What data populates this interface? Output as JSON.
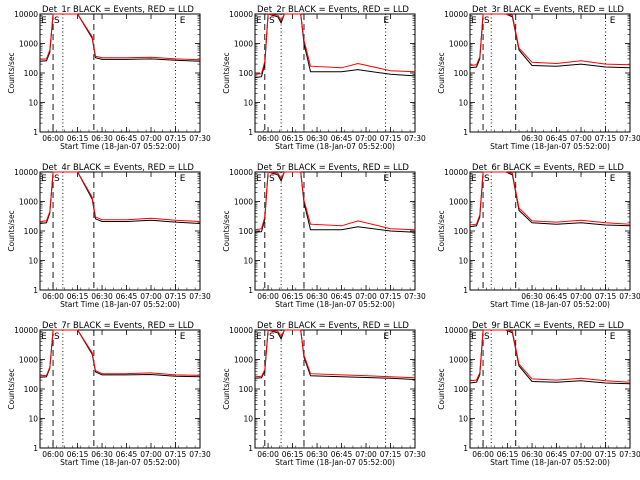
{
  "chart_data": [
    {
      "type": "line",
      "title": "Det_1r BLACK = Events, RED = LLD",
      "xlabel": "Start Time (18-Jan-07 05:52:00)",
      "ylabel": "Counts/sec",
      "log_y": true,
      "ylim": [
        1,
        10000
      ],
      "xlim": [
        "05:52",
        "07:30"
      ],
      "x_ticks": [
        "06:00",
        "06:15",
        "06:30",
        "06:45",
        "07:00",
        "07:15",
        "07:30"
      ],
      "y_ticks": [
        "1",
        "10",
        "100",
        "1000",
        "10000"
      ],
      "markers": [
        {
          "label": "E",
          "x": "05:52"
        },
        {
          "label": "S",
          "x": "06:00"
        },
        {
          "label": "E",
          "x": "07:17"
        }
      ],
      "dashed_lines": [
        "06:00",
        "06:25"
      ],
      "dotted_lines": [
        "06:06",
        "07:15"
      ],
      "series": [
        {
          "name": "Events",
          "color": "#000000",
          "x": [
            "05:52",
            "05:56",
            "05:58",
            "06:00",
            "06:15",
            "06:24",
            "06:26",
            "06:30",
            "06:45",
            "07:00",
            "07:15",
            "07:30"
          ],
          "values": [
            250,
            260,
            500,
            10000,
            10000,
            1500,
            330,
            290,
            290,
            300,
            270,
            250
          ]
        },
        {
          "name": "LLD",
          "color": "#ff0000",
          "x": [
            "05:52",
            "05:56",
            "05:58",
            "06:00",
            "06:15",
            "06:24",
            "06:26",
            "06:30",
            "06:45",
            "07:00",
            "07:15",
            "07:30"
          ],
          "values": [
            290,
            300,
            600,
            10000,
            10000,
            1700,
            370,
            330,
            330,
            340,
            300,
            280
          ]
        }
      ]
    },
    {
      "type": "line",
      "title": "Det_2r BLACK = Events, RED = LLD",
      "xlabel": "Start Time (18-Jan-07 05:52:00)",
      "ylabel": "Counts/sec",
      "log_y": true,
      "ylim": [
        1,
        10000
      ],
      "xlim": [
        "05:52",
        "07:30"
      ],
      "x_ticks": [
        "06:00",
        "06:15",
        "06:30",
        "06:45",
        "07:00",
        "07:15",
        "07:30"
      ],
      "y_ticks": [
        "1",
        "10",
        "100",
        "1000",
        "10000"
      ],
      "markers": [
        {
          "label": "E",
          "x": "05:52"
        },
        {
          "label": "S",
          "x": "06:00"
        },
        {
          "label": "E",
          "x": "07:10"
        }
      ],
      "dashed_lines": [
        "05:58",
        "06:22"
      ],
      "dotted_lines": [
        "06:08",
        "07:12"
      ],
      "series": [
        {
          "name": "Events",
          "color": "#000000",
          "x": [
            "05:52",
            "05:56",
            "05:58",
            "06:00",
            "06:06",
            "06:08",
            "06:10",
            "06:20",
            "06:22",
            "06:26",
            "06:45",
            "06:55",
            "07:15",
            "07:30"
          ],
          "values": [
            70,
            75,
            200,
            10000,
            8000,
            5000,
            10000,
            10000,
            1000,
            110,
            110,
            130,
            90,
            80
          ]
        },
        {
          "name": "LLD",
          "color": "#ff0000",
          "x": [
            "05:52",
            "05:56",
            "05:58",
            "06:00",
            "06:06",
            "06:08",
            "06:10",
            "06:20",
            "06:22",
            "06:26",
            "06:45",
            "06:55",
            "07:15",
            "07:30"
          ],
          "values": [
            90,
            95,
            250,
            10000,
            9000,
            6000,
            10000,
            10000,
            1300,
            170,
            150,
            210,
            120,
            110
          ]
        }
      ]
    },
    {
      "type": "line",
      "title": "Det_3r BLACK = Events, RED = LLD",
      "xlabel": "Start Time (18-Jan-07 05:52:00)",
      "ylabel": "Counts/sec",
      "log_y": true,
      "ylim": [
        1,
        10000
      ],
      "xlim": [
        "05:52",
        "07:30"
      ],
      "x_ticks": [
        "06:30",
        "06:45",
        "07:00",
        "07:15",
        "07:30"
      ],
      "y_ticks": [
        "1",
        "10",
        "100",
        "1000",
        "10000"
      ],
      "markers": [
        {
          "label": "E",
          "x": "05:52"
        },
        {
          "label": "S",
          "x": "06:00"
        },
        {
          "label": "E",
          "x": "07:17"
        }
      ],
      "dashed_lines": [
        "06:00",
        "06:20"
      ],
      "dotted_lines": [
        "06:05",
        "07:15"
      ],
      "series": [
        {
          "name": "Events",
          "color": "#000000",
          "x": [
            "05:52",
            "05:56",
            "05:58",
            "06:00",
            "06:14",
            "06:18",
            "06:22",
            "06:30",
            "06:45",
            "07:00",
            "07:15",
            "07:30"
          ],
          "values": [
            150,
            160,
            300,
            10000,
            10000,
            8000,
            600,
            180,
            170,
            200,
            160,
            150
          ]
        },
        {
          "name": "LLD",
          "color": "#ff0000",
          "x": [
            "05:52",
            "05:56",
            "05:58",
            "06:00",
            "06:14",
            "06:18",
            "06:22",
            "06:30",
            "06:45",
            "07:00",
            "07:15",
            "07:30"
          ],
          "values": [
            180,
            190,
            350,
            10000,
            10000,
            9000,
            700,
            230,
            210,
            260,
            200,
            190
          ]
        }
      ]
    },
    {
      "type": "line",
      "title": "Det_4r BLACK = Events, RED = LLD",
      "xlabel": "Start Time (18-Jan-07 05:52:00)",
      "ylabel": "Counts/sec",
      "log_y": true,
      "ylim": [
        1,
        10000
      ],
      "xlim": [
        "05:52",
        "07:30"
      ],
      "x_ticks": [
        "06:00",
        "06:15",
        "06:30",
        "06:45",
        "07:00",
        "07:15",
        "07:30"
      ],
      "y_ticks": [
        "1",
        "10",
        "100",
        "1000",
        "10000"
      ],
      "markers": [
        {
          "label": "E",
          "x": "05:52"
        },
        {
          "label": "S",
          "x": "06:00"
        },
        {
          "label": "E",
          "x": "07:17"
        }
      ],
      "dashed_lines": [
        "06:00",
        "06:25"
      ],
      "dotted_lines": [
        "06:06",
        "07:15"
      ],
      "series": [
        {
          "name": "Events",
          "color": "#000000",
          "x": [
            "05:52",
            "05:56",
            "05:58",
            "06:00",
            "06:15",
            "06:24",
            "06:26",
            "06:30",
            "06:45",
            "07:00",
            "07:15",
            "07:30"
          ],
          "values": [
            180,
            190,
            400,
            10000,
            10000,
            1200,
            260,
            210,
            210,
            230,
            200,
            180
          ]
        },
        {
          "name": "LLD",
          "color": "#ff0000",
          "x": [
            "05:52",
            "05:56",
            "05:58",
            "06:00",
            "06:15",
            "06:24",
            "06:26",
            "06:30",
            "06:45",
            "07:00",
            "07:15",
            "07:30"
          ],
          "values": [
            210,
            220,
            450,
            10000,
            10000,
            1400,
            300,
            240,
            240,
            270,
            230,
            210
          ]
        }
      ]
    },
    {
      "type": "line",
      "title": "Det_5r BLACK = Events, RED = LLD",
      "xlabel": "Start Time (18-Jan-07 05:52:00)",
      "ylabel": "Counts/sec",
      "log_y": true,
      "ylim": [
        1,
        10000
      ],
      "xlim": [
        "05:52",
        "07:30"
      ],
      "x_ticks": [
        "06:00",
        "06:15",
        "06:30",
        "06:45",
        "07:00",
        "07:15",
        "07:30"
      ],
      "y_ticks": [
        "1",
        "10",
        "100",
        "1000",
        "10000"
      ],
      "markers": [
        {
          "label": "E",
          "x": "05:52"
        },
        {
          "label": "S",
          "x": "06:00"
        },
        {
          "label": "E",
          "x": "07:10"
        }
      ],
      "dashed_lines": [
        "05:58",
        "06:22"
      ],
      "dotted_lines": [
        "06:08",
        "07:12"
      ],
      "series": [
        {
          "name": "Events",
          "color": "#000000",
          "x": [
            "05:52",
            "05:56",
            "05:58",
            "06:00",
            "06:06",
            "06:08",
            "06:10",
            "06:20",
            "06:22",
            "06:26",
            "06:45",
            "06:55",
            "07:15",
            "07:30"
          ],
          "values": [
            90,
            95,
            250,
            10000,
            8000,
            5000,
            10000,
            10000,
            900,
            110,
            110,
            140,
            100,
            90
          ]
        },
        {
          "name": "LLD",
          "color": "#ff0000",
          "x": [
            "05:52",
            "05:56",
            "05:58",
            "06:00",
            "06:06",
            "06:08",
            "06:10",
            "06:20",
            "06:22",
            "06:26",
            "06:45",
            "06:55",
            "07:15",
            "07:30"
          ],
          "values": [
            110,
            120,
            300,
            10000,
            9000,
            6000,
            10000,
            10000,
            1100,
            170,
            150,
            220,
            120,
            110
          ]
        }
      ]
    },
    {
      "type": "line",
      "title": "Det_6r BLACK = Events, RED = LLD",
      "xlabel": "Start Time (18-Jan-07 05:52:00)",
      "ylabel": "Counts/sec",
      "log_y": true,
      "ylim": [
        1,
        10000
      ],
      "xlim": [
        "05:52",
        "07:30"
      ],
      "x_ticks": [
        "06:30",
        "06:45",
        "07:00",
        "07:15",
        "07:30"
      ],
      "y_ticks": [
        "1",
        "10",
        "100",
        "1000",
        "10000"
      ],
      "markers": [
        {
          "label": "E",
          "x": "05:52"
        },
        {
          "label": "S",
          "x": "06:00"
        },
        {
          "label": "E",
          "x": "07:17"
        }
      ],
      "dashed_lines": [
        "06:00",
        "06:20"
      ],
      "dotted_lines": [
        "06:05",
        "07:15"
      ],
      "series": [
        {
          "name": "Events",
          "color": "#000000",
          "x": [
            "05:52",
            "05:56",
            "05:58",
            "06:00",
            "06:14",
            "06:18",
            "06:22",
            "06:30",
            "06:45",
            "07:00",
            "07:15",
            "07:30"
          ],
          "values": [
            140,
            150,
            300,
            10000,
            10000,
            8000,
            500,
            190,
            170,
            190,
            160,
            150
          ]
        },
        {
          "name": "LLD",
          "color": "#ff0000",
          "x": [
            "05:52",
            "05:56",
            "05:58",
            "06:00",
            "06:14",
            "06:18",
            "06:22",
            "06:30",
            "06:45",
            "07:00",
            "07:15",
            "07:30"
          ],
          "values": [
            160,
            170,
            350,
            10000,
            10000,
            9000,
            600,
            220,
            200,
            230,
            190,
            170
          ]
        }
      ]
    },
    {
      "type": "line",
      "title": "Det_7r BLACK = Events, RED = LLD",
      "xlabel": "Start Time (18-Jan-07 05:52:00)",
      "ylabel": "Counts/sec",
      "log_y": true,
      "ylim": [
        1,
        10000
      ],
      "xlim": [
        "05:52",
        "07:30"
      ],
      "x_ticks": [
        "06:00",
        "06:15",
        "06:30",
        "06:45",
        "07:00",
        "07:15",
        "07:30"
      ],
      "y_ticks": [
        "1",
        "10",
        "100",
        "1000",
        "10000"
      ],
      "markers": [
        {
          "label": "E",
          "x": "05:52"
        },
        {
          "label": "S",
          "x": "06:00"
        },
        {
          "label": "E",
          "x": "07:17"
        }
      ],
      "dashed_lines": [
        "06:00",
        "06:25"
      ],
      "dotted_lines": [
        "06:06",
        "07:15"
      ],
      "series": [
        {
          "name": "Events",
          "color": "#000000",
          "x": [
            "05:52",
            "05:56",
            "05:58",
            "06:00",
            "06:15",
            "06:24",
            "06:26",
            "06:30",
            "06:45",
            "07:00",
            "07:15",
            "07:30"
          ],
          "values": [
            250,
            260,
            500,
            10000,
            10000,
            1500,
            380,
            300,
            300,
            310,
            270,
            260
          ]
        },
        {
          "name": "LLD",
          "color": "#ff0000",
          "x": [
            "05:52",
            "05:56",
            "05:58",
            "06:00",
            "06:15",
            "06:24",
            "06:26",
            "06:30",
            "06:45",
            "07:00",
            "07:15",
            "07:30"
          ],
          "values": [
            280,
            290,
            550,
            10000,
            10000,
            1700,
            420,
            330,
            330,
            350,
            300,
            290
          ]
        }
      ]
    },
    {
      "type": "line",
      "title": "Det_8r BLACK = Events, RED = LLD",
      "xlabel": "Start Time (18-Jan-07 05:52:00)",
      "ylabel": "Counts/sec",
      "log_y": true,
      "ylim": [
        1,
        10000
      ],
      "xlim": [
        "05:52",
        "07:30"
      ],
      "x_ticks": [
        "06:00",
        "06:15",
        "06:30",
        "06:45",
        "07:00",
        "07:15",
        "07:30"
      ],
      "y_ticks": [
        "1",
        "10",
        "100",
        "1000",
        "10000"
      ],
      "markers": [
        {
          "label": "E",
          "x": "05:52"
        },
        {
          "label": "S",
          "x": "06:00"
        },
        {
          "label": "E",
          "x": "07:10"
        }
      ],
      "dashed_lines": [
        "05:58",
        "06:22"
      ],
      "dotted_lines": [
        "06:08",
        "07:12"
      ],
      "series": [
        {
          "name": "Events",
          "color": "#000000",
          "x": [
            "05:52",
            "05:56",
            "05:58",
            "06:00",
            "06:06",
            "06:08",
            "06:10",
            "06:20",
            "06:22",
            "06:26",
            "06:45",
            "06:55",
            "07:15",
            "07:30"
          ],
          "values": [
            230,
            240,
            400,
            10000,
            8000,
            5000,
            10000,
            10000,
            1200,
            280,
            260,
            250,
            230,
            210
          ]
        },
        {
          "name": "LLD",
          "color": "#ff0000",
          "x": [
            "05:52",
            "05:56",
            "05:58",
            "06:00",
            "06:06",
            "06:08",
            "06:10",
            "06:20",
            "06:22",
            "06:26",
            "06:45",
            "06:55",
            "07:15",
            "07:30"
          ],
          "values": [
            260,
            270,
            450,
            10000,
            9000,
            6000,
            10000,
            10000,
            1400,
            330,
            300,
            290,
            260,
            240
          ]
        }
      ]
    },
    {
      "type": "line",
      "title": "Det_9r BLACK = Events, RED = LLD",
      "xlabel": "Start Time (18-Jan-07 05:52:00)",
      "ylabel": "Counts/sec",
      "log_y": true,
      "ylim": [
        1,
        10000
      ],
      "xlim": [
        "05:52",
        "07:30"
      ],
      "x_ticks": [
        "06:00",
        "06:15",
        "06:30",
        "06:45",
        "07:00",
        "07:15",
        "07:30"
      ],
      "y_ticks": [
        "1",
        "10",
        "100",
        "1000",
        "10000"
      ],
      "markers": [
        {
          "label": "E",
          "x": "05:52"
        },
        {
          "label": "S",
          "x": "06:00"
        },
        {
          "label": "E",
          "x": "07:17"
        }
      ],
      "dashed_lines": [
        "06:00",
        "06:20"
      ],
      "dotted_lines": [
        "06:05",
        "07:15"
      ],
      "series": [
        {
          "name": "Events",
          "color": "#000000",
          "x": [
            "05:52",
            "05:56",
            "05:58",
            "06:00",
            "06:14",
            "06:18",
            "06:22",
            "06:30",
            "06:45",
            "07:00",
            "07:15",
            "07:30"
          ],
          "values": [
            160,
            170,
            300,
            10000,
            10000,
            8000,
            600,
            180,
            170,
            190,
            160,
            150
          ]
        },
        {
          "name": "LLD",
          "color": "#ff0000",
          "x": [
            "05:52",
            "05:56",
            "05:58",
            "06:00",
            "06:14",
            "06:18",
            "06:22",
            "06:30",
            "06:45",
            "07:00",
            "07:15",
            "07:30"
          ],
          "values": [
            190,
            200,
            350,
            10000,
            10000,
            9000,
            700,
            220,
            200,
            230,
            190,
            170
          ]
        }
      ]
    }
  ]
}
